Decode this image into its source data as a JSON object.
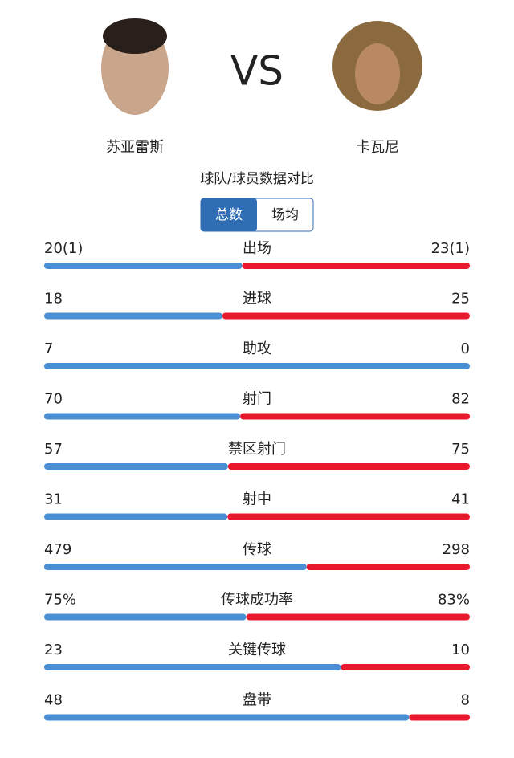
{
  "header": {
    "left_player": "苏亚雷斯",
    "vs": "VS",
    "right_player": "卡瓦尼",
    "subtitle": "球队/球员数据对比"
  },
  "tabs": [
    "总数",
    "场均"
  ],
  "rows": [
    {
      "label": "出场",
      "left": {
        "value": 20,
        "label": "20(1)"
      },
      "right": {
        "value": 23,
        "label": "23(1)"
      }
    },
    {
      "label": "进球",
      "left": 18,
      "right": 25
    },
    {
      "label": "助攻",
      "left": 7,
      "right": 0
    },
    {
      "label": "射门",
      "left": 70,
      "right": 82
    },
    {
      "label": "禁区射门",
      "left": 57,
      "right": 75
    },
    {
      "label": "射中",
      "left": 31,
      "right": 41
    },
    {
      "label": "传球",
      "left": 479,
      "right": 298
    },
    {
      "label": "传球成功率",
      "left": {
        "value": 75,
        "label": "75%"
      },
      "right": {
        "value": 83,
        "label": "83%"
      }
    },
    {
      "label": "关键传球",
      "left": 23,
      "right": 10
    },
    {
      "label": "盘带",
      "left": 48,
      "right": 8
    }
  ],
  "colors": {
    "left": "#4a8fd4",
    "right": "#e8192c"
  }
}
